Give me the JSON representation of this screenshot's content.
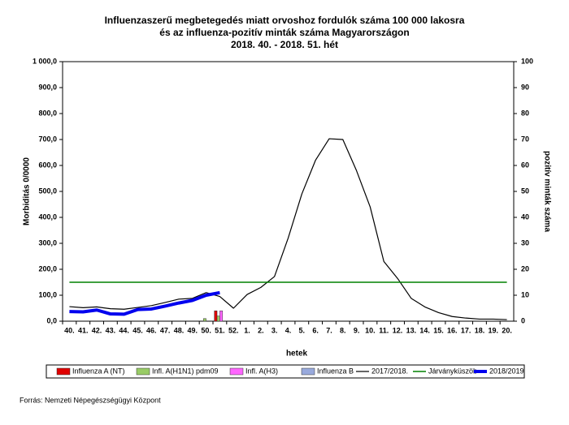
{
  "chart_data": {
    "type": "combo",
    "title": [
      "Influenzaszerű megbetegedés miatt orvoshoz fordulók száma 100 000 lakosra",
      "és az influenza-pozitív minták száma Magyarországon",
      "2018. 40. - 2018. 51. hét"
    ],
    "x_label": "hetek",
    "y_label": "Morbiditás 0/0000",
    "y2_label": "pozitív minták száma",
    "source": "Forrás: Nemzeti Népegészségügyi Központ",
    "categories": [
      "40.",
      "41.",
      "42.",
      "43.",
      "44.",
      "45.",
      "46.",
      "47.",
      "48.",
      "49.",
      "50.",
      "51.",
      "52.",
      "1.",
      "2.",
      "3.",
      "4.",
      "5.",
      "6.",
      "7.",
      "8.",
      "9.",
      "10.",
      "11.",
      "12.",
      "13.",
      "14.",
      "15.",
      "16.",
      "17.",
      "18.",
      "19.",
      "20."
    ],
    "ylim": [
      0,
      1000
    ],
    "yticks": [
      {
        "value": 0,
        "label": "0,0"
      },
      {
        "value": 100,
        "label": "100,0"
      },
      {
        "value": 200,
        "label": "200,0"
      },
      {
        "value": 300,
        "label": "300,0"
      },
      {
        "value": 400,
        "label": "400,0"
      },
      {
        "value": 500,
        "label": "500,0"
      },
      {
        "value": 600,
        "label": "600,0"
      },
      {
        "value": 700,
        "label": "700,0"
      },
      {
        "value": 800,
        "label": "800,0"
      },
      {
        "value": 900,
        "label": "900,0"
      },
      {
        "value": 1000,
        "label": "1 000,0"
      }
    ],
    "y2lim": [
      0,
      100
    ],
    "y2ticks": [
      0,
      10,
      20,
      30,
      40,
      50,
      60,
      70,
      80,
      90,
      100
    ],
    "series": [
      {
        "name": "Influenza A (NT)",
        "kind": "bar",
        "axis": "y2",
        "color": "#e00000",
        "values": [
          null,
          null,
          null,
          null,
          null,
          null,
          null,
          null,
          null,
          null,
          0,
          4,
          null,
          null,
          null,
          null,
          null,
          null,
          null,
          null,
          null,
          null,
          null,
          null,
          null,
          null,
          null,
          null,
          null,
          null,
          null,
          null,
          null
        ]
      },
      {
        "name": "Infl. A(H1N1) pdm09",
        "kind": "bar",
        "axis": "y2",
        "color": "#99cc66",
        "values": [
          null,
          null,
          null,
          null,
          null,
          null,
          null,
          null,
          null,
          null,
          1,
          2,
          null,
          null,
          null,
          null,
          null,
          null,
          null,
          null,
          null,
          null,
          null,
          null,
          null,
          null,
          null,
          null,
          null,
          null,
          null,
          null,
          null
        ]
      },
      {
        "name": "Infl. A(H3)",
        "kind": "bar",
        "axis": "y2",
        "color": "#ff66ff",
        "values": [
          null,
          null,
          null,
          null,
          null,
          null,
          null,
          null,
          null,
          null,
          0,
          4,
          null,
          null,
          null,
          null,
          null,
          null,
          null,
          null,
          null,
          null,
          null,
          null,
          null,
          null,
          null,
          null,
          null,
          null,
          null,
          null,
          null
        ]
      },
      {
        "name": "Influenza B",
        "kind": "bar",
        "axis": "y2",
        "color": "#99aadd",
        "values": [
          null,
          null,
          null,
          null,
          null,
          null,
          null,
          null,
          null,
          null,
          0,
          0,
          null,
          null,
          null,
          null,
          null,
          null,
          null,
          null,
          null,
          null,
          null,
          null,
          null,
          null,
          null,
          null,
          null,
          null,
          null,
          null,
          null
        ]
      },
      {
        "name": "2017/2018.",
        "kind": "line",
        "color": "#000000",
        "width": 1.2,
        "values": [
          56,
          52,
          55,
          48,
          46,
          53,
          60,
          72,
          85,
          88,
          110,
          95,
          50,
          103,
          130,
          172,
          320,
          490,
          620,
          703,
          700,
          580,
          440,
          230,
          165,
          88,
          55,
          33,
          18,
          12,
          8,
          8,
          6
        ]
      },
      {
        "name": "Járványküszöb",
        "kind": "line",
        "color": "#008000",
        "width": 1.5,
        "values": [
          150,
          150,
          150,
          150,
          150,
          150,
          150,
          150,
          150,
          150,
          150,
          150,
          150,
          150,
          150,
          150,
          150,
          150,
          150,
          150,
          150,
          150,
          150,
          150,
          150,
          150,
          150,
          150,
          150,
          150,
          150,
          150,
          150
        ]
      },
      {
        "name": "2018/2019",
        "kind": "line",
        "color": "#0000ee",
        "width": 4,
        "values": [
          37,
          36,
          43,
          28,
          27,
          45,
          47,
          58,
          70,
          80,
          100,
          110,
          null,
          null,
          null,
          null,
          null,
          null,
          null,
          null,
          null,
          null,
          null,
          null,
          null,
          null,
          null,
          null,
          null,
          null,
          null,
          null,
          null
        ]
      }
    ]
  }
}
